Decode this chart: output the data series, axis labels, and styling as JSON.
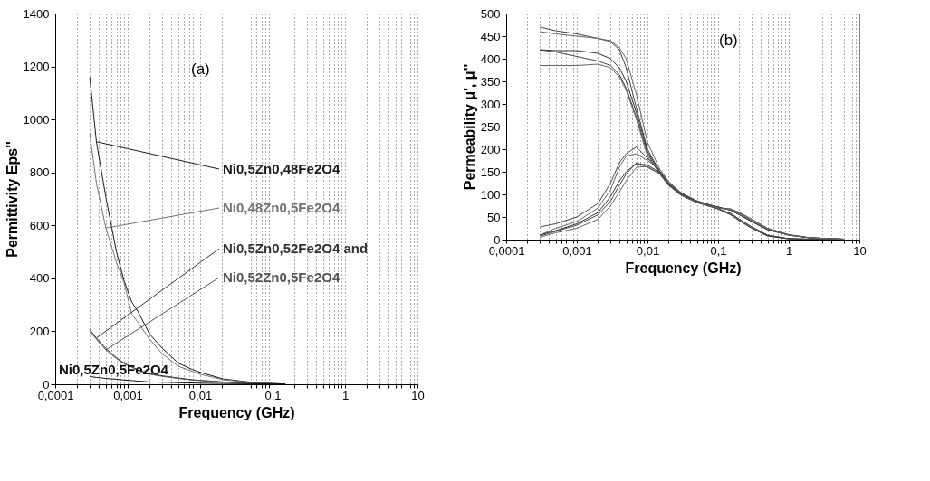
{
  "chart_data": [
    {
      "type": "line",
      "xlabel": "Frequency (GHz)",
      "ylabel": "Permittivity Eps''",
      "annotations": [
        "(a)"
      ],
      "log": "x",
      "grid": "x",
      "x": [
        0.0003,
        0.00037,
        0.0005,
        0.0007,
        0.00089,
        0.00114,
        0.00138,
        0.002,
        0.003,
        0.005,
        0.0079,
        0.01,
        0.021,
        0.05,
        0.1,
        0.15
      ],
      "series": [
        {
          "name": "Ni0,5Zn0,48Fe2O4",
          "color": "#1a1a1a",
          "values": [
            1160,
            916,
            706,
            500,
            392,
            310,
            276,
            190,
            136,
            80,
            55,
            45,
            20,
            8,
            3,
            1
          ]
        },
        {
          "name": "Ni0,48Zn0,5Fe2O4",
          "color": "#737373",
          "values": [
            945,
            760,
            590,
            460,
            385,
            264,
            235,
            170,
            115,
            68,
            48,
            38,
            17,
            7,
            3,
            1
          ]
        },
        {
          "name": "Ni0,5Zn0,52Fe2O4 and",
          "color": "#333333",
          "values": [
            206,
            175,
            135,
            100,
            80,
            66,
            55,
            40,
            32,
            24,
            17,
            15,
            9,
            4,
            2,
            1
          ]
        },
        {
          "name": "Ni0,52Zn0,5Fe2O4",
          "color": "#555555",
          "values": [
            200,
            170,
            130,
            97,
            78,
            64,
            53,
            38,
            30,
            22,
            16,
            14,
            8,
            4,
            2,
            1
          ]
        },
        {
          "name": "Ni0,5Zn0,5Fe2O4",
          "color": "#0d0d0d",
          "values": [
            29,
            26,
            22,
            19,
            16,
            14,
            12,
            9,
            8,
            6,
            5,
            4,
            3,
            2,
            1,
            1
          ]
        }
      ],
      "xlim": [
        0.0001,
        10
      ],
      "ylim": [
        0,
        1400
      ],
      "yticks": [
        0,
        200,
        400,
        600,
        800,
        1000,
        1200,
        1400
      ],
      "xticks": [
        {
          "value": 0.0001,
          "label": "0,0001"
        },
        {
          "value": 0.0002,
          "label": null
        },
        {
          "value": 0.0003,
          "label": null
        },
        {
          "value": 0.0004,
          "label": null
        },
        {
          "value": 0.0005,
          "label": null
        },
        {
          "value": 0.0006,
          "label": null
        },
        {
          "value": 0.0007,
          "label": null
        },
        {
          "value": 0.0008,
          "label": null
        },
        {
          "value": 0.0009,
          "label": null
        },
        {
          "value": 0.001,
          "label": "0,001"
        },
        {
          "value": 0.002,
          "label": null
        },
        {
          "value": 0.003,
          "label": null
        },
        {
          "value": 0.004,
          "label": null
        },
        {
          "value": 0.005,
          "label": null
        },
        {
          "value": 0.006,
          "label": null
        },
        {
          "value": 0.007,
          "label": null
        },
        {
          "value": 0.008,
          "label": null
        },
        {
          "value": 0.009,
          "label": null
        },
        {
          "value": 0.01,
          "label": "0,01"
        },
        {
          "value": 0.02,
          "label": null
        },
        {
          "value": 0.03,
          "label": null
        },
        {
          "value": 0.04,
          "label": null
        },
        {
          "value": 0.05,
          "label": null
        },
        {
          "value": 0.06,
          "label": null
        },
        {
          "value": 0.07,
          "label": null
        },
        {
          "value": 0.08,
          "label": null
        },
        {
          "value": 0.09,
          "label": null
        },
        {
          "value": 0.1,
          "label": "0,1"
        },
        {
          "value": 0.2,
          "label": null
        },
        {
          "value": 0.3,
          "label": null
        },
        {
          "value": 0.4,
          "label": null
        },
        {
          "value": 0.5,
          "label": null
        },
        {
          "value": 0.6,
          "label": null
        },
        {
          "value": 0.7,
          "label": null
        },
        {
          "value": 0.8,
          "label": null
        },
        {
          "value": 0.9,
          "label": null
        },
        {
          "value": 1,
          "label": "1"
        },
        {
          "value": 2,
          "label": null
        },
        {
          "value": 3,
          "label": null
        },
        {
          "value": 4,
          "label": null
        },
        {
          "value": 5,
          "label": null
        },
        {
          "value": 6,
          "label": null
        },
        {
          "value": 7,
          "label": null
        },
        {
          "value": 8,
          "label": null
        },
        {
          "value": 9,
          "label": null
        },
        {
          "value": 10,
          "label": "10"
        }
      ]
    },
    {
      "type": "line",
      "xlabel": "Frequency (GHz)",
      "ylabel": "Permeability μ', μ''",
      "annotations": [
        "(b)"
      ],
      "log": "x",
      "grid": "x",
      "x": [
        0.0003,
        0.0005,
        0.001,
        0.002,
        0.003,
        0.004,
        0.005,
        0.007,
        0.01,
        0.015,
        0.02,
        0.03,
        0.05,
        0.1,
        0.15,
        0.2,
        0.3,
        0.5,
        1,
        2,
        6
      ],
      "series": [
        {
          "color": "#444444",
          "values": [
            470,
            462,
            455,
            445,
            438,
            420,
            380,
            290,
            200,
            150,
            125,
            102,
            85,
            68,
            58,
            45,
            28,
            10,
            2,
            1,
            0
          ]
        },
        {
          "color": "#666666",
          "values": [
            460,
            455,
            450,
            445,
            440,
            425,
            400,
            320,
            215,
            155,
            128,
            103,
            86,
            70,
            68,
            60,
            45,
            25,
            11,
            4,
            1
          ]
        },
        {
          "color": "#333333",
          "values": [
            420,
            418,
            418,
            412,
            400,
            380,
            350,
            280,
            195,
            148,
            122,
            100,
            84,
            72,
            65,
            55,
            40,
            22,
            10,
            4,
            1
          ]
        },
        {
          "color": "#444444",
          "values": [
            420,
            415,
            405,
            395,
            385,
            365,
            335,
            270,
            190,
            145,
            120,
            98,
            82,
            68,
            55,
            42,
            25,
            8,
            2,
            1,
            0
          ]
        },
        {
          "color": "#666666",
          "values": [
            385,
            385,
            385,
            388,
            380,
            360,
            330,
            265,
            185,
            145,
            120,
            98,
            83,
            70,
            66,
            58,
            42,
            24,
            10,
            4,
            1
          ]
        },
        {
          "color": "#444444",
          "values": [
            28,
            35,
            50,
            80,
            125,
            170,
            190,
            205,
            180,
            150,
            125,
            102,
            85,
            68,
            58,
            45,
            28,
            10,
            2,
            1,
            0
          ]
        },
        {
          "color": "#666666",
          "values": [
            10,
            25,
            40,
            70,
            110,
            160,
            185,
            190,
            175,
            155,
            128,
            103,
            86,
            70,
            68,
            60,
            45,
            25,
            11,
            4,
            1
          ]
        },
        {
          "color": "#333333",
          "values": [
            10,
            20,
            35,
            60,
            95,
            130,
            150,
            168,
            165,
            148,
            122,
            100,
            84,
            72,
            65,
            55,
            40,
            22,
            10,
            4,
            1
          ]
        },
        {
          "color": "#444444",
          "values": [
            8,
            18,
            32,
            55,
            85,
            120,
            145,
            170,
            160,
            145,
            120,
            98,
            82,
            68,
            55,
            42,
            25,
            8,
            2,
            1,
            0
          ]
        },
        {
          "color": "#666666",
          "values": [
            5,
            15,
            25,
            45,
            75,
            105,
            130,
            160,
            162,
            145,
            120,
            98,
            83,
            70,
            66,
            58,
            42,
            24,
            10,
            4,
            1
          ]
        }
      ],
      "xlim": [
        0.0001,
        10
      ],
      "ylim": [
        0,
        500
      ],
      "yticks": [
        0,
        50,
        100,
        150,
        200,
        250,
        300,
        350,
        400,
        450,
        500
      ],
      "xticks": [
        {
          "value": 0.0001,
          "label": "0,0001"
        },
        {
          "value": 0.0002,
          "label": null
        },
        {
          "value": 0.0003,
          "label": null
        },
        {
          "value": 0.0004,
          "label": null
        },
        {
          "value": 0.0005,
          "label": null
        },
        {
          "value": 0.0006,
          "label": null
        },
        {
          "value": 0.0007,
          "label": null
        },
        {
          "value": 0.0008,
          "label": null
        },
        {
          "value": 0.0009,
          "label": null
        },
        {
          "value": 0.001,
          "label": "0,001"
        },
        {
          "value": 0.002,
          "label": null
        },
        {
          "value": 0.003,
          "label": null
        },
        {
          "value": 0.004,
          "label": null
        },
        {
          "value": 0.005,
          "label": null
        },
        {
          "value": 0.006,
          "label": null
        },
        {
          "value": 0.007,
          "label": null
        },
        {
          "value": 0.008,
          "label": null
        },
        {
          "value": 0.009,
          "label": null
        },
        {
          "value": 0.01,
          "label": "0,01"
        },
        {
          "value": 0.02,
          "label": null
        },
        {
          "value": 0.03,
          "label": null
        },
        {
          "value": 0.04,
          "label": null
        },
        {
          "value": 0.05,
          "label": null
        },
        {
          "value": 0.06,
          "label": null
        },
        {
          "value": 0.07,
          "label": null
        },
        {
          "value": 0.08,
          "label": null
        },
        {
          "value": 0.09,
          "label": null
        },
        {
          "value": 0.1,
          "label": "0,1"
        },
        {
          "value": 0.2,
          "label": null
        },
        {
          "value": 0.3,
          "label": null
        },
        {
          "value": 0.4,
          "label": null
        },
        {
          "value": 0.5,
          "label": null
        },
        {
          "value": 0.6,
          "label": null
        },
        {
          "value": 0.7,
          "label": null
        },
        {
          "value": 0.8,
          "label": null
        },
        {
          "value": 0.9,
          "label": null
        },
        {
          "value": 1,
          "label": "1"
        },
        {
          "value": 2,
          "label": null
        },
        {
          "value": 3,
          "label": null
        },
        {
          "value": 4,
          "label": null
        },
        {
          "value": 5,
          "label": null
        },
        {
          "value": 6,
          "label": null
        },
        {
          "value": 7,
          "label": null
        },
        {
          "value": 8,
          "label": null
        },
        {
          "value": 9,
          "label": null
        },
        {
          "value": 10,
          "label": "10"
        }
      ]
    }
  ]
}
